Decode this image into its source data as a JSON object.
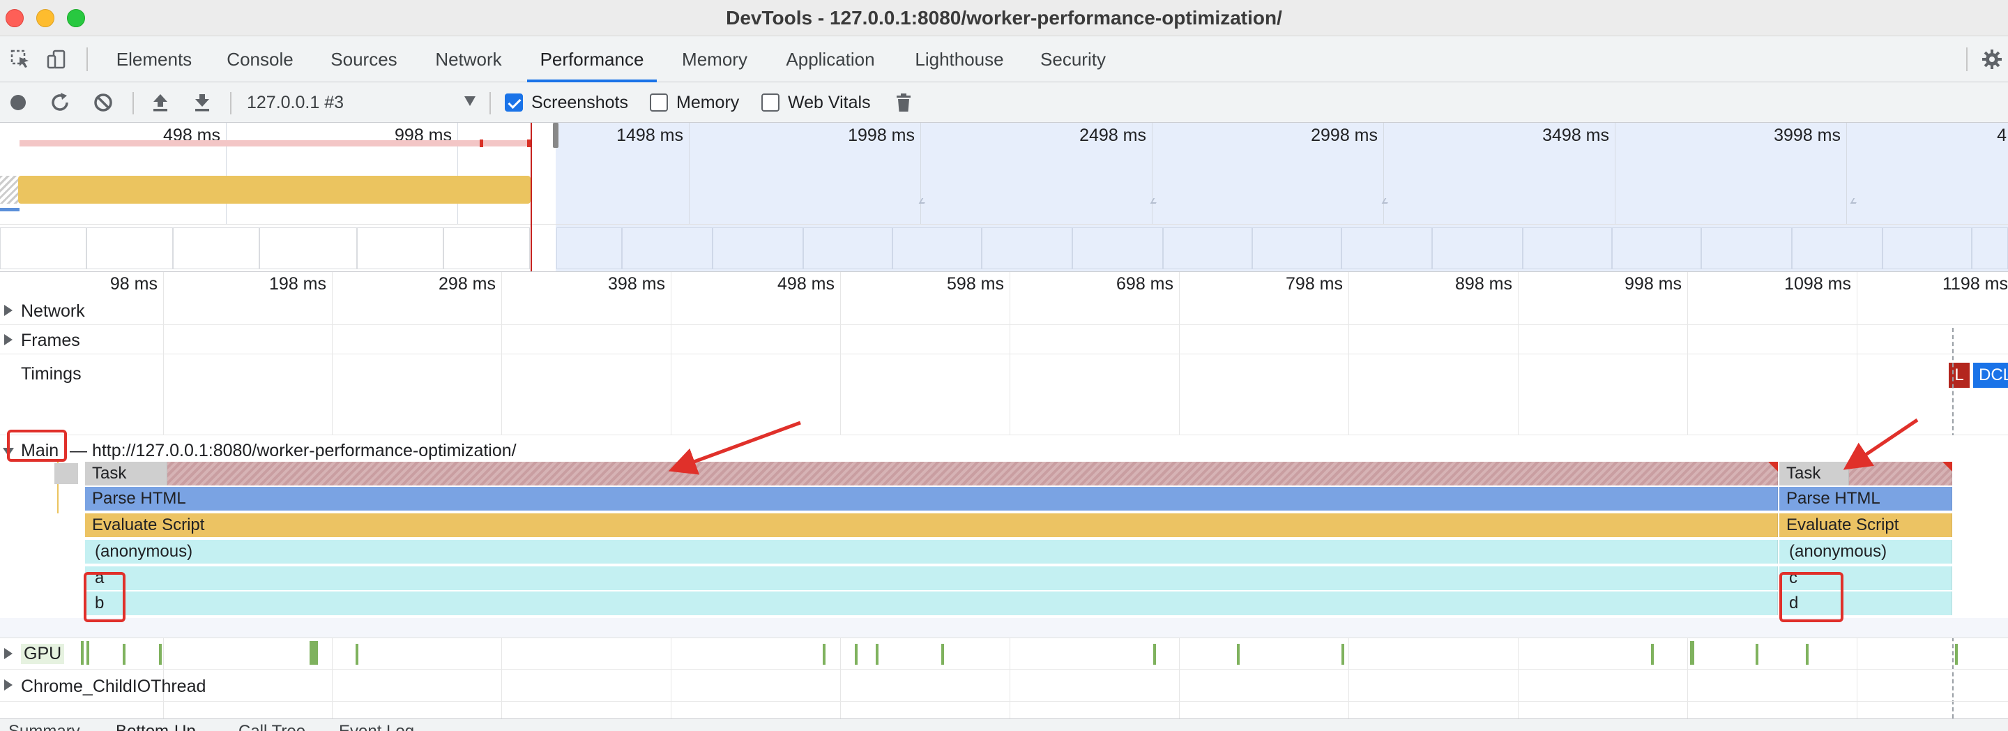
{
  "window": {
    "title": "DevTools - 127.0.0.1:8080/worker-performance-optimization/"
  },
  "tabs": [
    {
      "label": "Elements"
    },
    {
      "label": "Console"
    },
    {
      "label": "Sources"
    },
    {
      "label": "Network"
    },
    {
      "label": "Performance",
      "active": true
    },
    {
      "label": "Memory"
    },
    {
      "label": "Application"
    },
    {
      "label": "Lighthouse"
    },
    {
      "label": "Security"
    }
  ],
  "toolbar": {
    "target": "127.0.0.1 #3",
    "screenshots_label": "Screenshots",
    "screenshots_checked": true,
    "memory_label": "Memory",
    "memory_checked": false,
    "webvitals_label": "Web Vitals",
    "webvitals_checked": false
  },
  "overview": {
    "ticks": [
      "498 ms",
      "998 ms",
      "1498 ms",
      "1998 ms",
      "2498 ms",
      "2998 ms",
      "3498 ms",
      "3998 ms",
      "4"
    ]
  },
  "flame": {
    "ticks": [
      "98 ms",
      "198 ms",
      "298 ms",
      "398 ms",
      "498 ms",
      "598 ms",
      "698 ms",
      "798 ms",
      "898 ms",
      "998 ms",
      "1098 ms",
      "1198 ms"
    ],
    "tracks": {
      "network": "Network",
      "frames": "Frames",
      "timings": "Timings",
      "main": "Main",
      "main_url": "— http://127.0.0.1:8080/worker-performance-optimization/",
      "gpu": "GPU",
      "io": "Chrome_ChildIOThread"
    },
    "timings": {
      "l": "L",
      "dcl": "DCL"
    },
    "left_stack": {
      "task": "Task",
      "parse": "Parse HTML",
      "eval": "Evaluate Script",
      "anon": "(anonymous)",
      "f1": "a",
      "f2": "b"
    },
    "right_stack": {
      "task": "Task",
      "parse": "Parse HTML",
      "eval": "Evaluate Script",
      "anon": "(anonymous)",
      "f1": "c",
      "f2": "d"
    }
  },
  "bottom_tabs": [
    "Summary",
    "Bottom-Up",
    "Call Tree",
    "Event Log"
  ],
  "colors": {
    "accent": "#1a73e8",
    "annotation": "#e0302a",
    "task": "#c99ea1",
    "parse_html": "#7aa3e3",
    "evaluate_script": "#ecc363",
    "js_frame": "#c4f0f2",
    "gpu": "#7fb25e"
  }
}
